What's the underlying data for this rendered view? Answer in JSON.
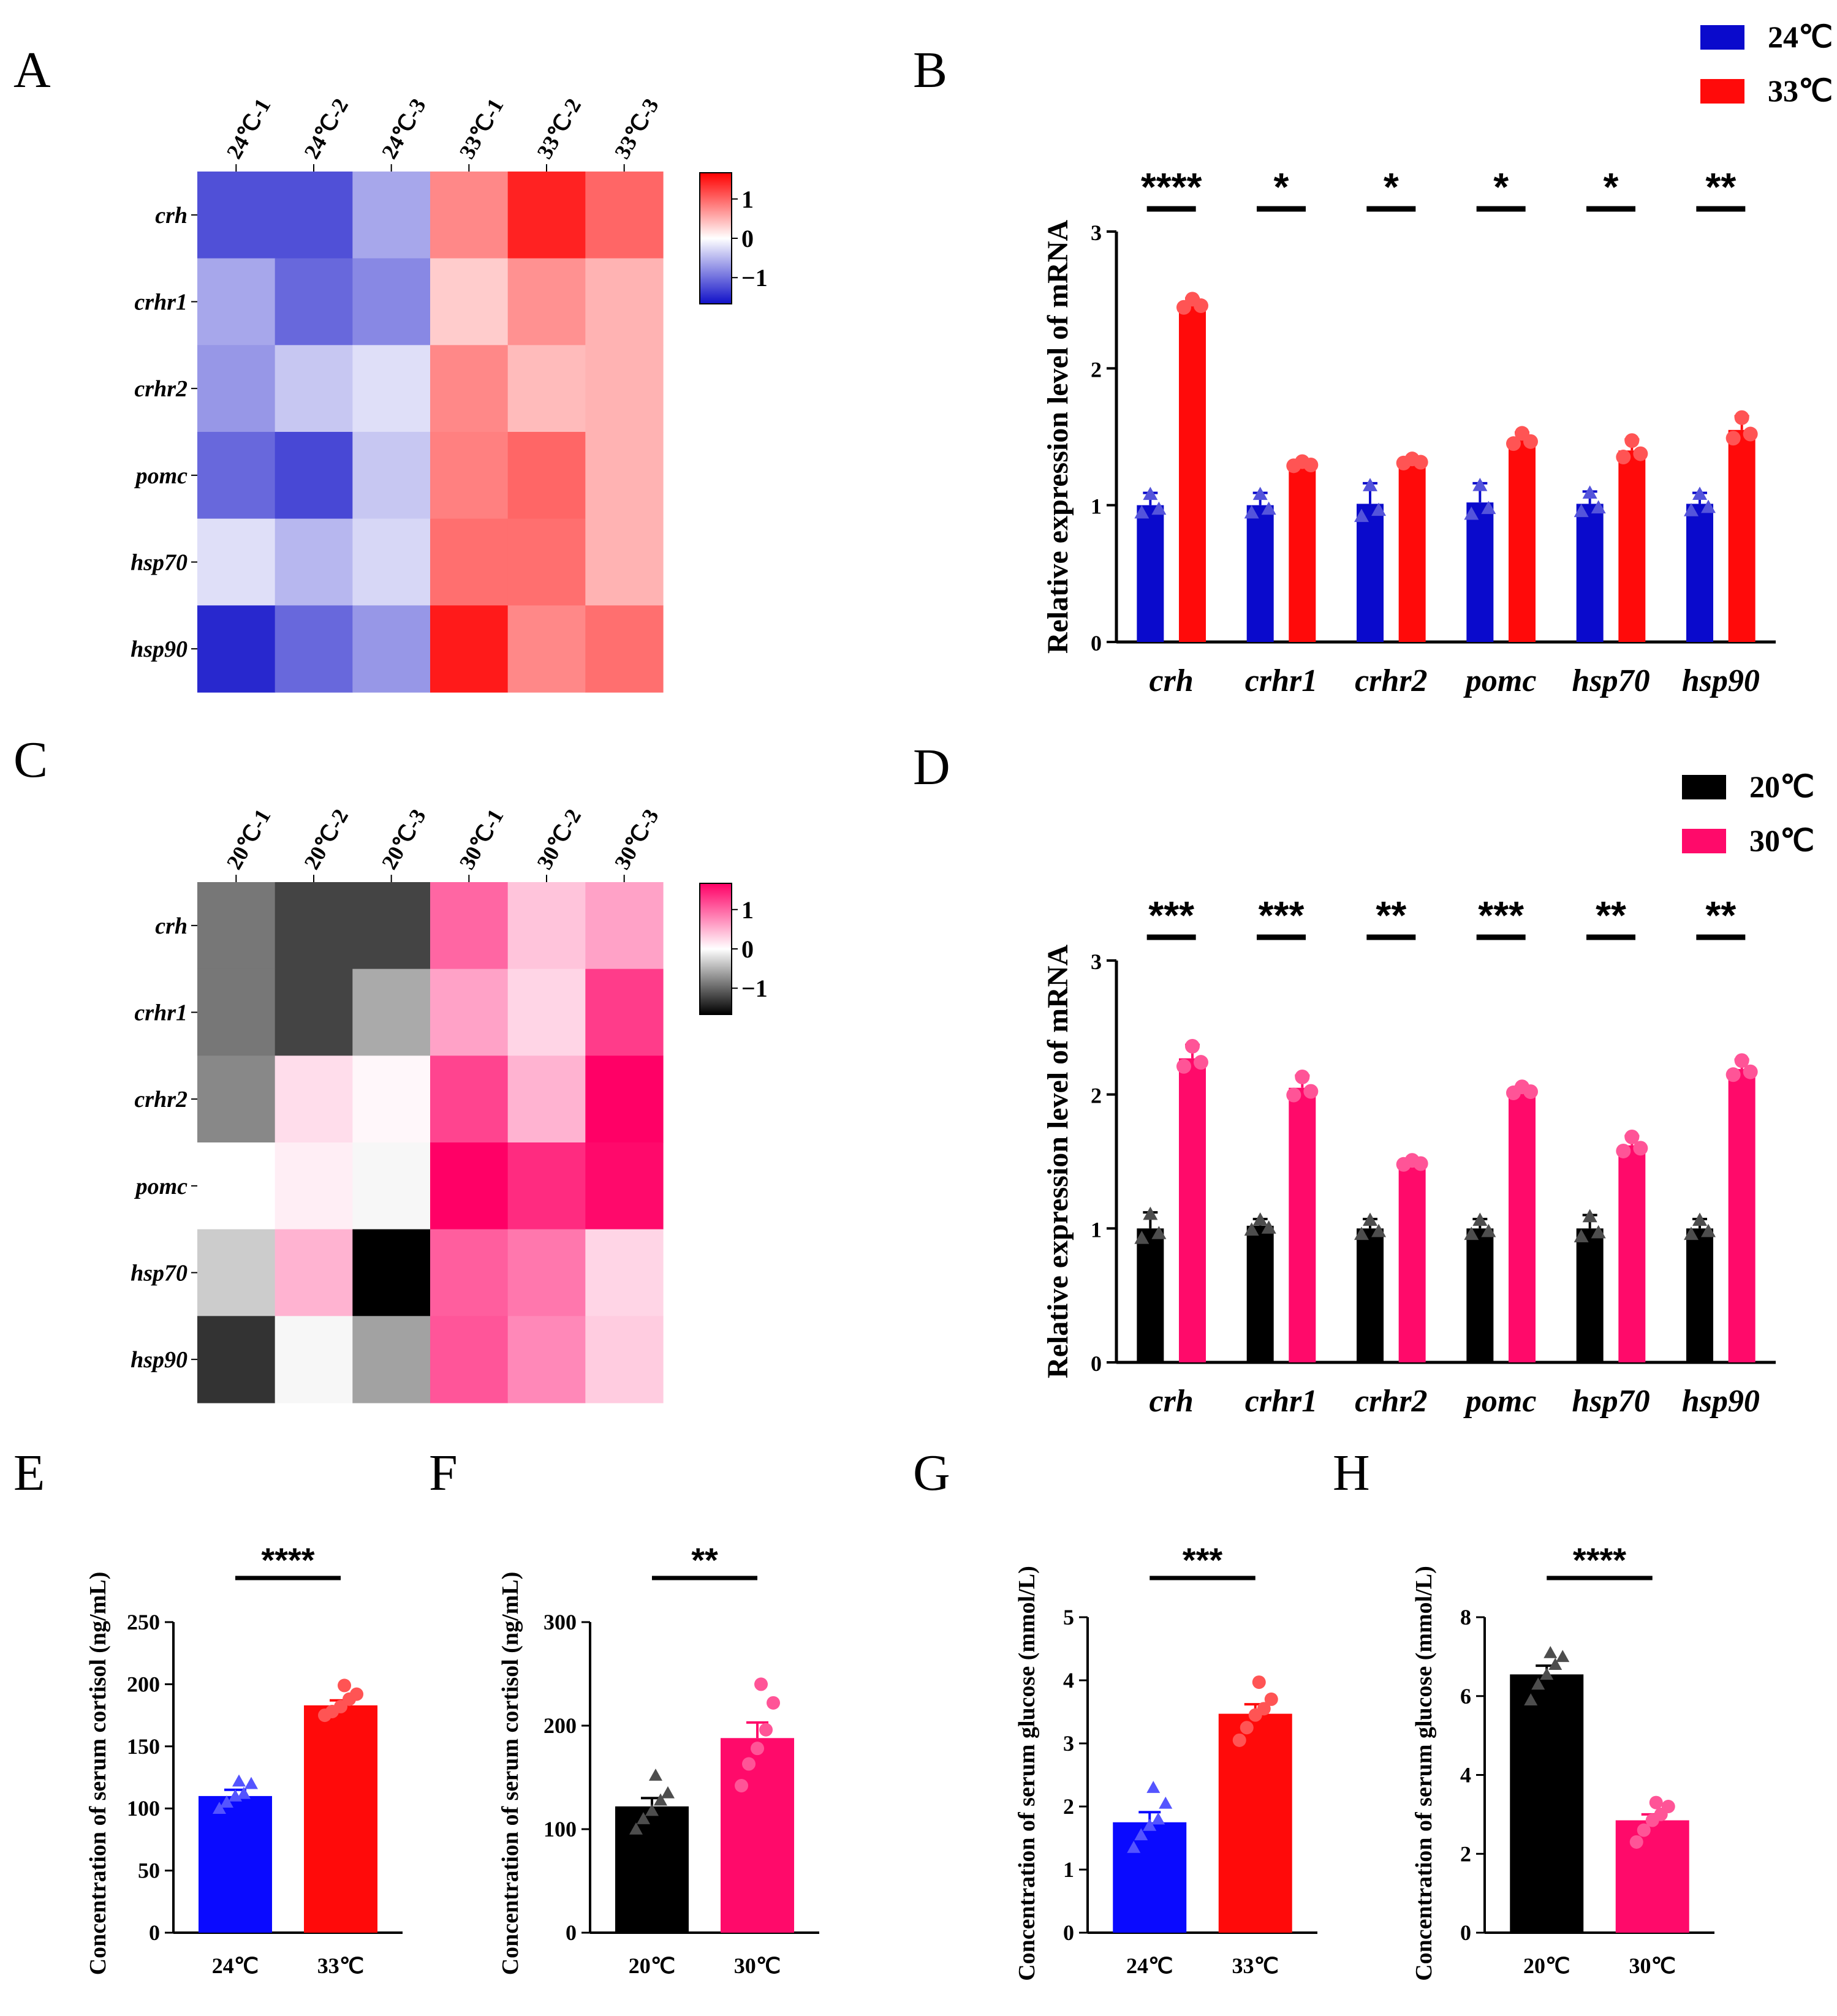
{
  "panels": {
    "A": "A",
    "B": "B",
    "C": "C",
    "D": "D",
    "E": "E",
    "F": "F",
    "G": "G",
    "H": "H"
  },
  "chart_data": [
    {
      "id": "A",
      "type": "heatmap",
      "columns": [
        "24℃-1",
        "24℃-2",
        "24℃-3",
        "33℃-1",
        "33℃-2",
        "33℃-3"
      ],
      "rows": [
        "crh",
        "crhr1",
        "crhr2",
        "pomc",
        "hsp70",
        "hsp90"
      ],
      "values": [
        [
          -1.1,
          -1.1,
          -0.55,
          0.7,
          1.3,
          0.9
        ],
        [
          -0.55,
          -0.95,
          -0.75,
          0.3,
          0.65,
          0.45
        ],
        [
          -0.65,
          -0.35,
          -0.2,
          0.7,
          0.4,
          0.45
        ],
        [
          -0.95,
          -1.15,
          -0.35,
          0.75,
          0.9,
          0.45
        ],
        [
          -0.2,
          -0.45,
          -0.25,
          0.85,
          0.85,
          0.45
        ],
        [
          -1.35,
          -0.95,
          -0.65,
          1.35,
          0.7,
          0.85
        ]
      ],
      "colorbar": {
        "ticks": [
          "1",
          "0",
          "−1"
        ],
        "low_color": "#1010c8",
        "mid_color": "#ffffff",
        "high_color": "#ff0000"
      }
    },
    {
      "id": "B",
      "type": "bar",
      "categories": [
        "crh",
        "crhr1",
        "crhr2",
        "pomc",
        "hsp70",
        "hsp90"
      ],
      "series": [
        {
          "name": "24℃",
          "color": "#0a0acc",
          "values": [
            1.0,
            1.0,
            1.01,
            1.02,
            1.01,
            1.01
          ],
          "errors": [
            0.09,
            0.09,
            0.15,
            0.14,
            0.09,
            0.08
          ]
        },
        {
          "name": "33℃",
          "color": "#ff0a0a",
          "values": [
            2.47,
            1.3,
            1.32,
            1.48,
            1.4,
            1.55
          ],
          "errors": [
            0.04,
            0.02,
            0.02,
            0.05,
            0.08,
            0.1
          ]
        }
      ],
      "significance": [
        "****",
        "*",
        "*",
        "*",
        "*",
        "**"
      ],
      "ylabel": "Relative expression level of mRNA",
      "ylim": [
        0,
        3
      ],
      "yticks": [
        "0",
        "1",
        "2",
        "3"
      ]
    },
    {
      "id": "C",
      "type": "heatmap",
      "columns": [
        "20℃-1",
        "20℃-2",
        "20℃-3",
        "30℃-1",
        "30℃-2",
        "30℃-3"
      ],
      "rows": [
        "crh",
        "crhr1",
        "crhr2",
        "pomc",
        "hsp70",
        "hsp90"
      ],
      "values": [
        [
          -0.8,
          -1.1,
          -1.1,
          0.9,
          0.35,
          0.55
        ],
        [
          -0.8,
          -1.1,
          -0.5,
          0.55,
          0.25,
          1.15
        ],
        [
          -0.7,
          0.2,
          0.05,
          1.1,
          0.45,
          1.55
        ],
        [
          0.0,
          0.1,
          -0.05,
          1.75,
          1.25,
          1.45
        ],
        [
          -0.3,
          0.45,
          -1.9,
          0.95,
          0.8,
          0.25
        ],
        [
          -1.2,
          -0.05,
          -0.55,
          1.0,
          0.7,
          0.3
        ]
      ],
      "colorbar": {
        "ticks": [
          "1",
          "0",
          "−1"
        ],
        "low_color": "#000000",
        "mid_color": "#ffffff",
        "high_color": "#ff0066"
      }
    },
    {
      "id": "D",
      "type": "bar",
      "categories": [
        "crh",
        "crhr1",
        "crhr2",
        "pomc",
        "hsp70",
        "hsp90"
      ],
      "series": [
        {
          "name": "20℃",
          "color": "#000000",
          "values": [
            1.0,
            1.02,
            1.0,
            1.0,
            1.0,
            1.0
          ],
          "errors": [
            0.12,
            0.05,
            0.07,
            0.07,
            0.1,
            0.07
          ]
        },
        {
          "name": "30℃",
          "color": "#ff0a6a",
          "values": [
            2.27,
            2.05,
            1.49,
            2.03,
            1.62,
            2.19
          ],
          "errors": [
            0.1,
            0.09,
            0.02,
            0.03,
            0.07,
            0.07
          ]
        }
      ],
      "significance": [
        "***",
        "***",
        "**",
        "***",
        "**",
        "**"
      ],
      "ylabel": "Relative expression level of mRNA",
      "ylim": [
        0,
        3
      ],
      "yticks": [
        "0",
        "1",
        "2",
        "3"
      ]
    },
    {
      "id": "E",
      "type": "bar",
      "categories": [
        "24℃",
        "33℃"
      ],
      "colors": [
        "#0a0aff",
        "#ff0a0a"
      ],
      "values": [
        110,
        183
      ],
      "errors": [
        5,
        4
      ],
      "points": [
        [
          100,
          105,
          110,
          112,
          120,
          122
        ],
        [
          175,
          178,
          182,
          188,
          192,
          199
        ]
      ],
      "significance": "****",
      "ylabel": "Concentration of serum cortisol (ng/mL)",
      "ylim": [
        0,
        250
      ],
      "yticks": [
        "0",
        "50",
        "100",
        "150",
        "200",
        "250"
      ]
    },
    {
      "id": "F",
      "type": "bar",
      "categories": [
        "20℃",
        "30℃"
      ],
      "colors": [
        "#000000",
        "#ff0a6a"
      ],
      "values": [
        122,
        188
      ],
      "errors": [
        8,
        15
      ],
      "points": [
        [
          100,
          110,
          118,
          128,
          135,
          152
        ],
        [
          142,
          163,
          178,
          196,
          222,
          240
        ]
      ],
      "significance": "**",
      "ylabel": "Concentration of serum cortisol (ng/mL)",
      "ylim": [
        0,
        300
      ],
      "yticks": [
        "0",
        "100",
        "200",
        "300"
      ]
    },
    {
      "id": "G",
      "type": "bar",
      "categories": [
        "24℃",
        "33℃"
      ],
      "colors": [
        "#0a0aff",
        "#ff0a0a"
      ],
      "values": [
        1.75,
        3.47
      ],
      "errors": [
        0.16,
        0.15
      ],
      "points": [
        [
          1.35,
          1.55,
          1.7,
          1.8,
          2.05,
          2.3
        ],
        [
          3.05,
          3.25,
          3.45,
          3.55,
          3.7,
          3.97
        ]
      ],
      "significance": "***",
      "ylabel": "Concentration of serum glucose (mmol/L)",
      "ylim": [
        0,
        5
      ],
      "yticks": [
        "0",
        "1",
        "2",
        "3",
        "4",
        "5"
      ]
    },
    {
      "id": "H",
      "type": "bar",
      "categories": [
        "20℃",
        "30℃"
      ],
      "colors": [
        "#000000",
        "#ff0a6a"
      ],
      "values": [
        6.55,
        2.85
      ],
      "errors": [
        0.22,
        0.15
      ],
      "points": [
        [
          5.9,
          6.3,
          6.55,
          6.8,
          7.0,
          7.1
        ],
        [
          2.3,
          2.6,
          2.85,
          3.0,
          3.2,
          3.3
        ]
      ],
      "significance": "****",
      "ylabel": "Concentration of serum glucose (mmol/L)",
      "ylim": [
        0,
        8
      ],
      "yticks": [
        "0",
        "2",
        "4",
        "6",
        "8"
      ]
    }
  ]
}
